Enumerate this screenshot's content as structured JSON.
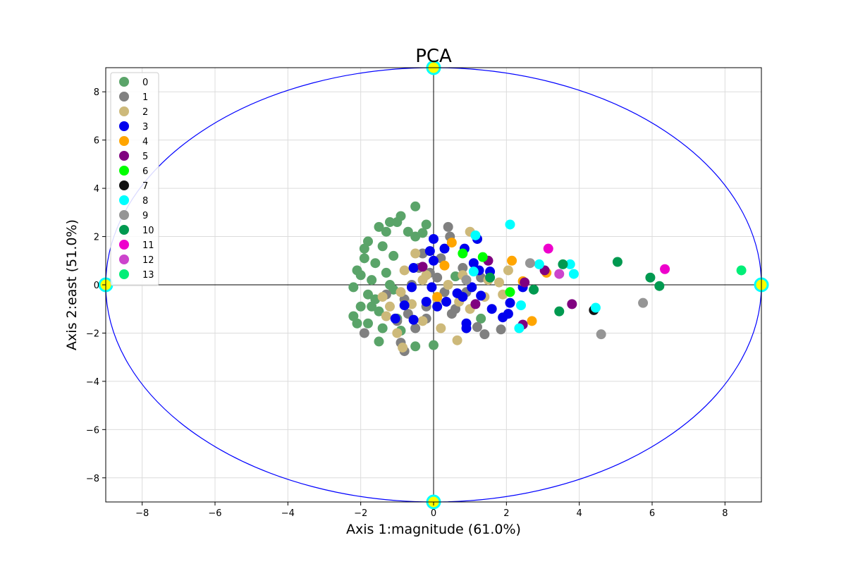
{
  "chart_data": {
    "type": "scatter",
    "title": "PCA",
    "xlabel": "Axis 1:magnitude (61.0%)",
    "ylabel": "Axis 2:east (51.0%)",
    "xlim": [
      -9,
      9
    ],
    "ylim": [
      -9,
      9
    ],
    "xticks": [
      -8,
      -6,
      -4,
      -2,
      0,
      2,
      4,
      6,
      8
    ],
    "yticks": [
      -8,
      -6,
      -4,
      -2,
      0,
      2,
      4,
      6,
      8
    ],
    "xtick_labels": [
      "−8",
      "−6",
      "−4",
      "−2",
      "0",
      "2",
      "4",
      "6",
      "8"
    ],
    "ytick_labels": [
      "−8",
      "−6",
      "−4",
      "−2",
      "0",
      "2",
      "4",
      "6",
      "8"
    ],
    "grid": true,
    "legend_position": "top-left",
    "ellipse": {
      "center": [
        0,
        0
      ],
      "radius_x": 9,
      "radius_y": 9,
      "color": "#0000ff"
    },
    "ellipse_markers": {
      "points": [
        [
          0,
          9
        ],
        [
          0,
          -9
        ],
        [
          -9,
          0
        ],
        [
          9,
          0
        ]
      ],
      "color": "#ffff00",
      "edge": "#00ffff"
    },
    "series": [
      {
        "name": "0",
        "color": "#5aa469",
        "points": [
          [
            -1.2,
            2.6
          ],
          [
            -0.5,
            3.25
          ],
          [
            -1.5,
            2.4
          ],
          [
            -0.9,
            2.85
          ],
          [
            -1.0,
            2.6
          ],
          [
            -0.7,
            2.2
          ],
          [
            -1.8,
            1.8
          ],
          [
            -1.4,
            1.6
          ],
          [
            -1.9,
            1.1
          ],
          [
            -2.1,
            0.6
          ],
          [
            -1.6,
            0.9
          ],
          [
            -1.3,
            0.5
          ],
          [
            -1.7,
            0.2
          ],
          [
            -2.2,
            -0.1
          ],
          [
            -1.8,
            -0.4
          ],
          [
            -2.0,
            -0.9
          ],
          [
            -1.5,
            -1.1
          ],
          [
            -2.2,
            -1.3
          ],
          [
            -1.8,
            -1.6
          ],
          [
            -1.4,
            -1.8
          ],
          [
            -2.1,
            -1.6
          ],
          [
            -1.0,
            -1.4
          ],
          [
            -1.5,
            -2.35
          ],
          [
            -0.5,
            -2.55
          ],
          [
            0.0,
            -2.5
          ],
          [
            -0.2,
            2.5
          ],
          [
            -0.5,
            2.0
          ],
          [
            -1.1,
            1.2
          ],
          [
            -1.6,
            -0.6
          ],
          [
            -1.2,
            0.0
          ],
          [
            -2.0,
            0.4
          ],
          [
            -0.9,
            -1.9
          ],
          [
            1.3,
            -1.4
          ],
          [
            0.6,
            0.35
          ],
          [
            -1.3,
            2.2
          ],
          [
            -1.9,
            1.5
          ],
          [
            -1.7,
            -0.9
          ],
          [
            -0.3,
            2.15
          ],
          [
            -1.1,
            -0.2
          ]
        ]
      },
      {
        "name": "1",
        "color": "#808080",
        "points": [
          [
            0.4,
            2.4
          ],
          [
            0.45,
            2.0
          ],
          [
            -0.3,
            1.3
          ],
          [
            0.2,
            1.1
          ],
          [
            -0.4,
            0.7
          ],
          [
            0.1,
            0.3
          ],
          [
            -0.6,
            0.0
          ],
          [
            0.3,
            -0.3
          ],
          [
            -0.8,
            -0.6
          ],
          [
            -0.2,
            -0.9
          ],
          [
            0.5,
            -1.2
          ],
          [
            -1.0,
            -1.5
          ],
          [
            -0.5,
            -1.8
          ],
          [
            -1.9,
            -2.0
          ],
          [
            -0.9,
            -2.4
          ],
          [
            -0.8,
            -2.75
          ],
          [
            1.4,
            -2.05
          ],
          [
            1.85,
            -1.85
          ],
          [
            1.2,
            -1.75
          ],
          [
            0.9,
            -0.3
          ],
          [
            1.3,
            0.3
          ],
          [
            -0.2,
            -1.4
          ],
          [
            0.6,
            -1.0
          ],
          [
            -0.7,
            -1.2
          ],
          [
            0.8,
            0.7
          ],
          [
            -0.1,
            0.5
          ],
          [
            -1.3,
            -0.4
          ]
        ]
      },
      {
        "name": "2",
        "color": "#cdb97a",
        "points": [
          [
            1.0,
            2.2
          ],
          [
            -1.4,
            -0.5
          ],
          [
            -0.9,
            -0.3
          ],
          [
            -0.6,
            -0.8
          ],
          [
            -0.3,
            0.2
          ],
          [
            0.1,
            -0.6
          ],
          [
            0.4,
            0.0
          ],
          [
            0.7,
            -0.7
          ],
          [
            1.0,
            -1.0
          ],
          [
            1.4,
            -0.5
          ],
          [
            1.8,
            0.1
          ],
          [
            2.05,
            0.6
          ],
          [
            -0.8,
            0.6
          ],
          [
            -0.5,
            1.3
          ],
          [
            -1.3,
            -1.3
          ],
          [
            -1.0,
            -2.0
          ],
          [
            -0.85,
            -2.6
          ],
          [
            0.2,
            -1.8
          ],
          [
            0.65,
            -2.3
          ],
          [
            -0.2,
            0.4
          ],
          [
            0.8,
            0.4
          ],
          [
            1.9,
            -0.4
          ],
          [
            -0.3,
            -1.5
          ],
          [
            1.5,
            0.2
          ],
          [
            -1.2,
            -0.9
          ]
        ]
      },
      {
        "name": "3",
        "color": "#0000ee",
        "points": [
          [
            0.0,
            1.9
          ],
          [
            0.3,
            1.5
          ],
          [
            -0.1,
            1.4
          ],
          [
            0.85,
            1.5
          ],
          [
            1.2,
            1.9
          ],
          [
            1.1,
            0.9
          ],
          [
            -0.55,
            0.7
          ],
          [
            0.0,
            1.0
          ],
          [
            -0.05,
            -0.1
          ],
          [
            -0.6,
            -0.1
          ],
          [
            -0.2,
            -0.7
          ],
          [
            0.1,
            -0.9
          ],
          [
            0.35,
            -0.7
          ],
          [
            0.65,
            -0.35
          ],
          [
            0.8,
            -0.5
          ],
          [
            1.05,
            -0.1
          ],
          [
            1.3,
            -0.45
          ],
          [
            1.6,
            -1.0
          ],
          [
            1.9,
            -1.35
          ],
          [
            2.05,
            -1.2
          ],
          [
            2.1,
            -0.75
          ],
          [
            2.45,
            -0.1
          ],
          [
            1.55,
            0.55
          ],
          [
            -0.8,
            -0.85
          ],
          [
            -1.05,
            -1.4
          ],
          [
            -0.55,
            -1.45
          ],
          [
            0.9,
            -1.6
          ],
          [
            0.9,
            -1.8
          ],
          [
            1.25,
            0.6
          ]
        ]
      },
      {
        "name": "4",
        "color": "#ffa500",
        "points": [
          [
            0.5,
            1.75
          ],
          [
            0.3,
            0.8
          ],
          [
            2.15,
            1.0
          ],
          [
            2.45,
            0.15
          ],
          [
            3.1,
            0.5
          ],
          [
            2.7,
            -1.5
          ],
          [
            0.1,
            -0.5
          ]
        ]
      },
      {
        "name": "5",
        "color": "#800080",
        "points": [
          [
            -0.3,
            0.75
          ],
          [
            1.5,
            1.0
          ],
          [
            1.15,
            -0.8
          ],
          [
            2.5,
            0.1
          ],
          [
            3.05,
            0.6
          ],
          [
            3.8,
            -0.8
          ],
          [
            2.45,
            -1.65
          ]
        ]
      },
      {
        "name": "6",
        "color": "#00ff00",
        "points": [
          [
            0.8,
            1.3
          ],
          [
            1.35,
            1.15
          ],
          [
            2.1,
            -0.3
          ]
        ]
      },
      {
        "name": "7",
        "color": "#111111",
        "points": [
          [
            4.4,
            -1.05
          ]
        ]
      },
      {
        "name": "8",
        "color": "#00ffff",
        "points": [
          [
            2.1,
            2.5
          ],
          [
            1.15,
            2.05
          ],
          [
            1.1,
            0.55
          ],
          [
            2.9,
            0.85
          ],
          [
            3.75,
            0.85
          ],
          [
            3.85,
            0.45
          ],
          [
            2.4,
            -0.85
          ],
          [
            2.35,
            -1.8
          ],
          [
            4.45,
            -0.95
          ]
        ]
      },
      {
        "name": "9",
        "color": "#959595",
        "points": [
          [
            2.65,
            0.9
          ],
          [
            5.75,
            -0.75
          ],
          [
            4.6,
            -2.05
          ],
          [
            0.9,
            0.2
          ]
        ]
      },
      {
        "name": "10",
        "color": "#009950",
        "points": [
          [
            1.55,
            0.3
          ],
          [
            2.75,
            -0.2
          ],
          [
            3.55,
            0.85
          ],
          [
            5.05,
            0.95
          ],
          [
            5.95,
            0.3
          ],
          [
            6.2,
            -0.05
          ],
          [
            3.45,
            -1.1
          ]
        ]
      },
      {
        "name": "11",
        "color": "#ee00cc",
        "points": [
          [
            3.15,
            1.5
          ],
          [
            6.35,
            0.65
          ]
        ]
      },
      {
        "name": "12",
        "color": "#cc44cc",
        "points": [
          [
            3.45,
            0.45
          ]
        ]
      },
      {
        "name": "13",
        "color": "#00ee77",
        "points": [
          [
            8.45,
            0.6
          ]
        ]
      }
    ]
  }
}
